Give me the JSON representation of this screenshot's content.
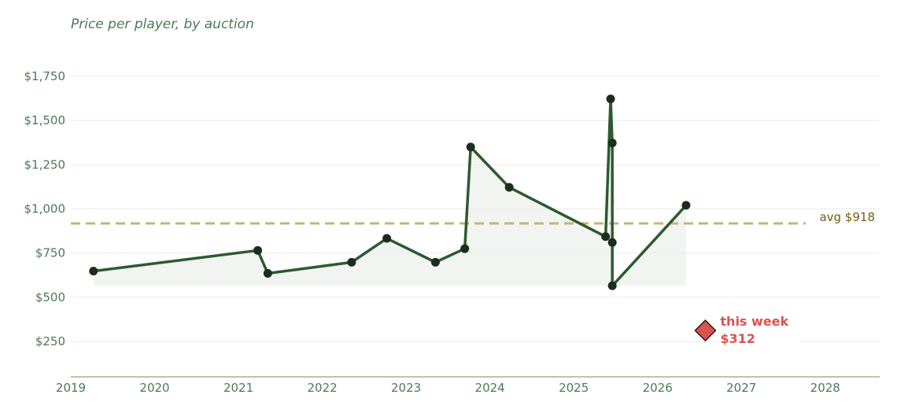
{
  "chart_data": {
    "type": "line",
    "title": "Price per player, by auction",
    "xlabel": "",
    "ylabel": "",
    "x_ticks": [
      "2019",
      "2020",
      "2021",
      "2022",
      "2023",
      "2024",
      "2025",
      "2026",
      "2027",
      "2028"
    ],
    "y_ticks": [
      "$250",
      "$500",
      "$750",
      "$1,000",
      "$1,250",
      "$1,500",
      "$1,750"
    ],
    "xlim": [
      2019.0,
      2028.65
    ],
    "ylim": [
      50,
      1870
    ],
    "grid": "horizontal",
    "series": [
      {
        "values_note": "",
        "points": [
          {
            "x": 2019.27,
            "y": 648
          },
          {
            "x": 2021.23,
            "y": 765
          },
          {
            "x": 2021.35,
            "y": 635
          },
          {
            "x": 2022.35,
            "y": 698
          },
          {
            "x": 2022.77,
            "y": 833
          },
          {
            "x": 2023.35,
            "y": 698
          },
          {
            "x": 2023.7,
            "y": 775
          },
          {
            "x": 2023.77,
            "y": 1350
          },
          {
            "x": 2024.23,
            "y": 1122
          },
          {
            "x": 2025.38,
            "y": 843
          },
          {
            "x": 2025.44,
            "y": 1622
          },
          {
            "x": 2025.46,
            "y": 1373
          },
          {
            "x": 2025.46,
            "y": 810
          },
          {
            "x": 2025.46,
            "y": 565
          },
          {
            "x": 2026.34,
            "y": 1020
          }
        ]
      }
    ],
    "reference_line": {
      "y": 918,
      "label": "avg $918"
    },
    "highlight": {
      "x": 2026.57,
      "y": 312,
      "label_line1": "this week",
      "label_line2": "$312"
    },
    "colors": {
      "line": "#2d5a2f",
      "marker": "#1b2e1c",
      "fill": "#e7ede7",
      "grid": "#ececec",
      "axis": "#b8a88a",
      "avg": "#c8b27a",
      "highlight": "#d9534f",
      "text": "#4a7a55"
    }
  }
}
